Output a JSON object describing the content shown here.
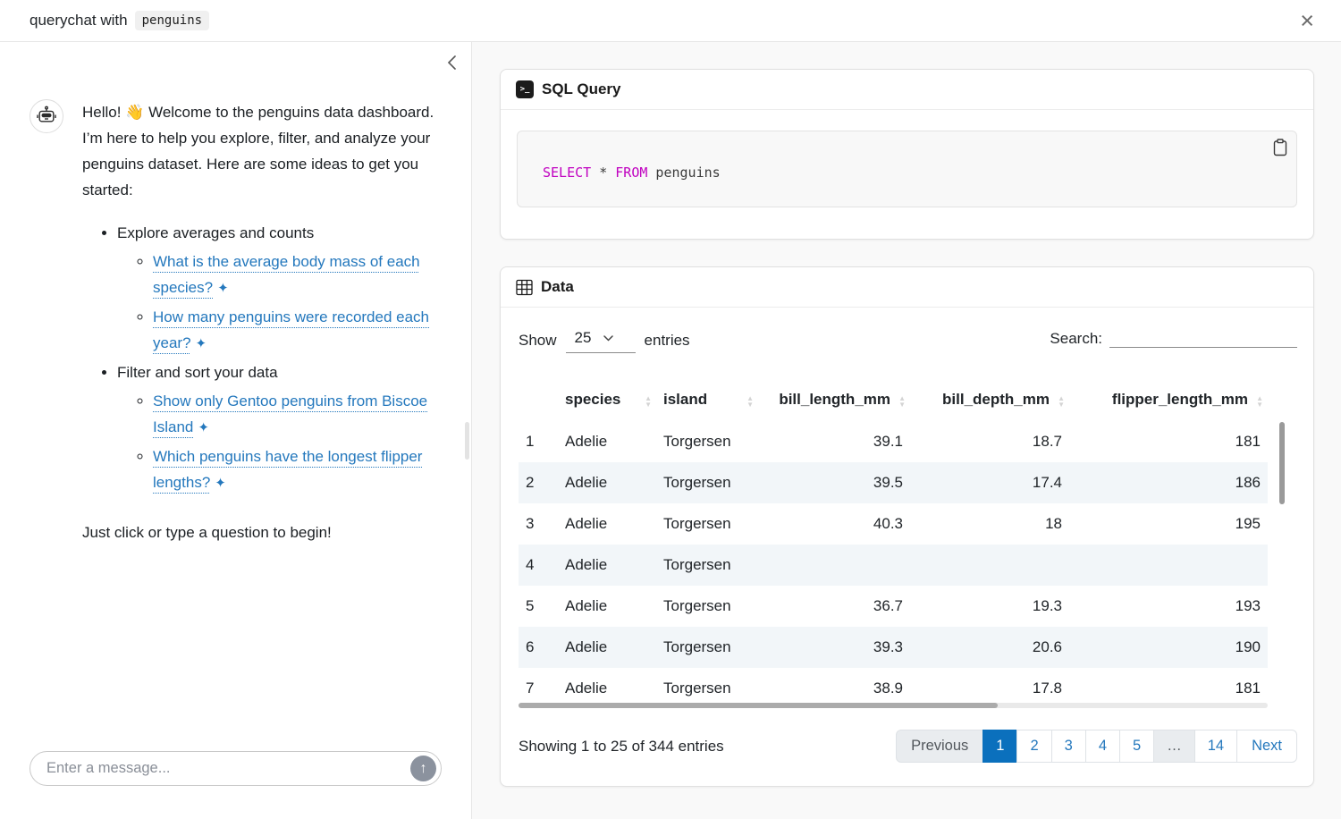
{
  "colors": {
    "accent_blue": "#0b70bd",
    "link_blue": "#2478bd",
    "sql_keyword_magenta": "#c000c0",
    "stripe_row": "#f2f6f9"
  },
  "header": {
    "title_prefix": "querychat with",
    "dataset_name": "penguins",
    "close_icon": "×"
  },
  "chat": {
    "collapse_icon": "‹",
    "sparkle_icon": "✦",
    "send_icon": "↑",
    "input_placeholder": "Enter a message...",
    "message": {
      "greeting": "Hello! 👋 Welcome to the penguins data dashboard. I’m here to help you explore, filter, and analyze your penguins dataset. Here are some ideas to get you started:",
      "sections": [
        {
          "label": "Explore averages and counts",
          "suggestions": [
            "What is the average body mass of each species?",
            "How many penguins were recorded each year?"
          ]
        },
        {
          "label": "Filter and sort your data",
          "suggestions": [
            "Show only Gentoo penguins from Biscoe Island",
            "Which penguins have the longest flipper lengths?"
          ]
        }
      ],
      "closing": "Just click or type a question to begin!"
    }
  },
  "sql_card": {
    "title": "SQL Query",
    "terminal_icon": ">_",
    "tokens": [
      "SELECT",
      " * ",
      "FROM",
      " penguins"
    ]
  },
  "data_card": {
    "title": "Data",
    "length_control": {
      "prefix": "Show",
      "value": "25",
      "suffix": "entries"
    },
    "search_label": "Search:",
    "table": {
      "columns": [
        {
          "label": "",
          "align": "al",
          "cls": "col-idx",
          "sortable": false
        },
        {
          "label": "species",
          "align": "al",
          "cls": "col-species",
          "sortable": true
        },
        {
          "label": "island",
          "align": "al",
          "cls": "col-island",
          "sortable": true
        },
        {
          "label": "bill_length_mm",
          "align": "ar",
          "cls": "col-bl",
          "sortable": true
        },
        {
          "label": "bill_depth_mm",
          "align": "ar",
          "cls": "col-bd",
          "sortable": true
        },
        {
          "label": "flipper_length_mm",
          "align": "ar",
          "cls": "col-fl",
          "sortable": true
        }
      ],
      "rows": [
        [
          "1",
          "Adelie",
          "Torgersen",
          "39.1",
          "18.7",
          "181"
        ],
        [
          "2",
          "Adelie",
          "Torgersen",
          "39.5",
          "17.4",
          "186"
        ],
        [
          "3",
          "Adelie",
          "Torgersen",
          "40.3",
          "18",
          "195"
        ],
        [
          "4",
          "Adelie",
          "Torgersen",
          "",
          "",
          ""
        ],
        [
          "5",
          "Adelie",
          "Torgersen",
          "36.7",
          "19.3",
          "193"
        ],
        [
          "6",
          "Adelie",
          "Torgersen",
          "39.3",
          "20.6",
          "190"
        ],
        [
          "7",
          "Adelie",
          "Torgersen",
          "38.9",
          "17.8",
          "181"
        ]
      ]
    },
    "info": "Showing 1 to 25 of 344 entries",
    "pagination": [
      {
        "label": "Previous",
        "state": "disabled"
      },
      {
        "label": "1",
        "state": "active"
      },
      {
        "label": "2",
        "state": "link"
      },
      {
        "label": "3",
        "state": "link"
      },
      {
        "label": "4",
        "state": "link"
      },
      {
        "label": "5",
        "state": "link"
      },
      {
        "label": "…",
        "state": "disabled"
      },
      {
        "label": "14",
        "state": "link"
      },
      {
        "label": "Next",
        "state": "link"
      }
    ]
  }
}
